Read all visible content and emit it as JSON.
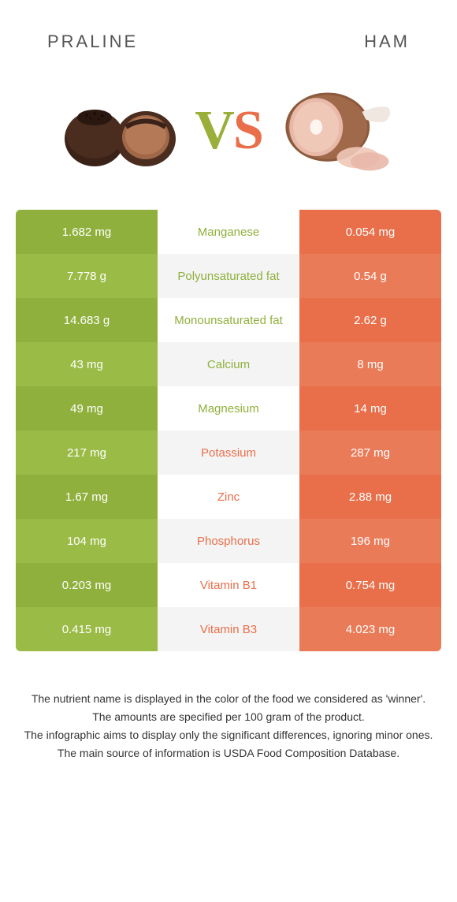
{
  "titles": {
    "left": "Praline",
    "right": "Ham"
  },
  "vs": {
    "v": "V",
    "s": "S"
  },
  "colors": {
    "left_a": "#8fb03c",
    "left_b": "#9abb45",
    "right_a": "#e86f4a",
    "right_b": "#ea7b58",
    "mid_a": "#ffffff",
    "mid_b": "#f4f4f4",
    "left_text": "#8fb03c",
    "right_text": "#e86f4a",
    "title_text": "#555555",
    "footer_text": "#333333"
  },
  "rows": [
    {
      "left": "1.682 mg",
      "name": "Manganese",
      "right": "0.054 mg",
      "winner": "left"
    },
    {
      "left": "7.778 g",
      "name": "Polyunsaturated fat",
      "right": "0.54 g",
      "winner": "left"
    },
    {
      "left": "14.683 g",
      "name": "Monounsaturated fat",
      "right": "2.62 g",
      "winner": "left"
    },
    {
      "left": "43 mg",
      "name": "Calcium",
      "right": "8 mg",
      "winner": "left"
    },
    {
      "left": "49 mg",
      "name": "Magnesium",
      "right": "14 mg",
      "winner": "left"
    },
    {
      "left": "217 mg",
      "name": "Potassium",
      "right": "287 mg",
      "winner": "right"
    },
    {
      "left": "1.67 mg",
      "name": "Zinc",
      "right": "2.88 mg",
      "winner": "right"
    },
    {
      "left": "104 mg",
      "name": "Phosphorus",
      "right": "196 mg",
      "winner": "right"
    },
    {
      "left": "0.203 mg",
      "name": "Vitamin B1",
      "right": "0.754 mg",
      "winner": "right"
    },
    {
      "left": "0.415 mg",
      "name": "Vitamin B3",
      "right": "4.023 mg",
      "winner": "right"
    }
  ],
  "footer": [
    "The nutrient name is displayed in the color of the food we considered as 'winner'.",
    "The amounts are specified per 100 gram of the product.",
    "The infographic aims to display only the significant differences, ignoring minor ones.",
    "The main source of information is USDA Food Composition Database."
  ]
}
